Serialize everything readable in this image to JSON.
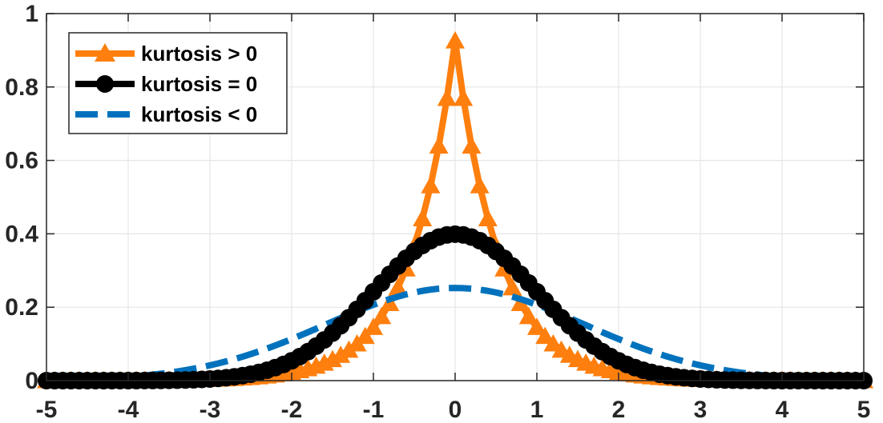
{
  "chart_data": {
    "type": "line",
    "title": "",
    "xlabel": "",
    "ylabel": "",
    "xlim": [
      -5,
      5
    ],
    "ylim": [
      0,
      1
    ],
    "xticks": [
      -5,
      -4,
      -3,
      -2,
      -1,
      0,
      1,
      2,
      3,
      4,
      5
    ],
    "yticks": [
      0,
      0.2,
      0.4,
      0.6,
      0.8,
      1
    ],
    "xtick_labels": [
      "-5",
      "-4",
      "-3",
      "-2",
      "-1",
      "0",
      "1",
      "2",
      "3",
      "4",
      "5"
    ],
    "ytick_labels": [
      "0",
      "0.2",
      "0.4",
      "0.6",
      "0.8",
      "1"
    ],
    "grid": true,
    "legend_position": "top-left",
    "x_step": 0.1,
    "series": [
      {
        "name": "kurtosis > 0",
        "distribution": "Laplace(0, 0.54)",
        "color": "#ff7f0e",
        "marker": "triangle-up",
        "line_style": "solid",
        "peak": 0.926
      },
      {
        "name": "kurtosis = 0",
        "distribution": "Normal(0, 1)",
        "color": "#000000",
        "marker": "circle",
        "line_style": "solid",
        "peak": 0.399
      },
      {
        "name": "kurtosis < 0",
        "distribution": "Normal(0, 1.58)",
        "color": "#0072bd",
        "marker": "none",
        "line_style": "dashed",
        "peak": 0.252
      }
    ]
  }
}
